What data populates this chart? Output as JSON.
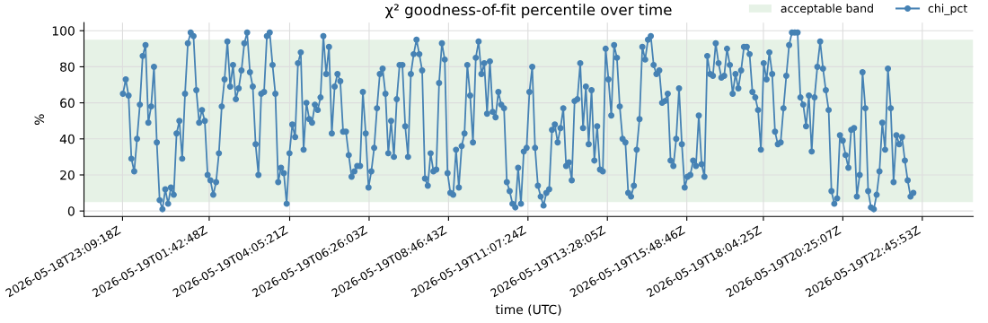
{
  "chart_data": {
    "type": "line",
    "title": "χ² goodness-of-fit percentile over time",
    "xlabel": "time (UTC)",
    "ylabel": "%",
    "xlim": [
      "2026-05-18T22:01",
      "2026-05-20T00:16"
    ],
    "ylim": [
      -3,
      104.5
    ],
    "xticks": [
      {
        "value": "2026-05-18T23:09:18",
        "label": "2026-05-18T23:09:18Z"
      },
      {
        "value": "2026-05-19T01:42:48",
        "label": "2026-05-19T01:42:48Z"
      },
      {
        "value": "2026-05-19T04:05:21",
        "label": "2026-05-19T04:05:21Z"
      },
      {
        "value": "2026-05-19T06:26:03",
        "label": "2026-05-19T06:26:03Z"
      },
      {
        "value": "2026-05-19T08:46:43",
        "label": "2026-05-19T08:46:43Z"
      },
      {
        "value": "2026-05-19T11:07:24",
        "label": "2026-05-19T11:07:24Z"
      },
      {
        "value": "2026-05-19T13:28:05",
        "label": "2026-05-19T13:28:05Z"
      },
      {
        "value": "2026-05-19T15:48:46",
        "label": "2026-05-19T15:48:46Z"
      },
      {
        "value": "2026-05-19T18:04:25",
        "label": "2026-05-19T18:04:25Z"
      },
      {
        "value": "2026-05-19T20:25:07",
        "label": "2026-05-19T20:25:07Z"
      },
      {
        "value": "2026-05-19T22:45:53",
        "label": "2026-05-19T22:45:53Z"
      }
    ],
    "yticks": [
      0,
      20,
      40,
      60,
      80,
      100
    ],
    "grid": true,
    "legend": "top right",
    "marker": "circle",
    "line_style": "solid",
    "bands": [
      {
        "axis": "y",
        "from": 5,
        "to": 95,
        "label": "acceptable band",
        "color": "#e6f2e6"
      }
    ],
    "x": [
      "2026-05-18T23:10",
      "2026-05-18T23:15",
      "2026-05-18T23:20",
      "2026-05-18T23:25",
      "2026-05-18T23:30",
      "2026-05-18T23:35",
      "2026-05-18T23:40",
      "2026-05-18T23:45",
      "2026-05-18T23:50",
      "2026-05-18T23:55",
      "2026-05-19T00:00",
      "2026-05-19T00:05",
      "2026-05-19T00:10",
      "2026-05-19T00:15",
      "2026-05-19T00:20",
      "2026-05-19T00:25",
      "2026-05-19T00:30",
      "2026-05-19T00:35",
      "2026-05-19T00:40",
      "2026-05-19T00:45",
      "2026-05-19T00:50",
      "2026-05-19T00:55",
      "2026-05-19T01:00",
      "2026-05-19T01:05",
      "2026-05-19T01:10",
      "2026-05-19T01:15",
      "2026-05-19T01:20",
      "2026-05-19T01:25",
      "2026-05-19T01:30",
      "2026-05-19T01:35",
      "2026-05-19T01:40",
      "2026-05-19T01:45",
      "2026-05-19T01:50",
      "2026-05-19T01:55",
      "2026-05-19T02:00",
      "2026-05-19T02:05",
      "2026-05-19T02:10",
      "2026-05-19T02:15",
      "2026-05-19T02:20",
      "2026-05-19T02:25",
      "2026-05-19T02:30",
      "2026-05-19T02:35",
      "2026-05-19T02:40",
      "2026-05-19T02:45",
      "2026-05-19T02:50",
      "2026-05-19T02:55",
      "2026-05-19T03:00",
      "2026-05-19T03:05",
      "2026-05-19T03:10",
      "2026-05-19T03:15",
      "2026-05-19T03:20",
      "2026-05-19T03:25",
      "2026-05-19T03:30",
      "2026-05-19T03:35",
      "2026-05-19T03:40",
      "2026-05-19T03:45",
      "2026-05-19T03:50",
      "2026-05-19T03:55",
      "2026-05-19T04:00",
      "2026-05-19T04:05",
      "2026-05-19T04:10",
      "2026-05-19T04:15",
      "2026-05-19T04:20",
      "2026-05-19T04:25",
      "2026-05-19T04:30",
      "2026-05-19T04:35",
      "2026-05-19T04:40",
      "2026-05-19T04:45",
      "2026-05-19T04:50",
      "2026-05-19T04:55",
      "2026-05-19T05:00",
      "2026-05-19T05:05",
      "2026-05-19T05:10",
      "2026-05-19T05:15",
      "2026-05-19T05:20",
      "2026-05-19T05:25",
      "2026-05-19T05:30",
      "2026-05-19T05:35",
      "2026-05-19T05:40",
      "2026-05-19T05:45",
      "2026-05-19T05:50",
      "2026-05-19T05:55",
      "2026-05-19T06:00",
      "2026-05-19T06:05",
      "2026-05-19T06:10",
      "2026-05-19T06:15",
      "2026-05-19T06:20",
      "2026-05-19T06:25",
      "2026-05-19T06:30",
      "2026-05-19T06:35",
      "2026-05-19T06:40",
      "2026-05-19T06:45",
      "2026-05-19T06:50",
      "2026-05-19T06:55",
      "2026-05-19T07:00",
      "2026-05-19T07:05",
      "2026-05-19T07:10",
      "2026-05-19T07:15",
      "2026-05-19T07:20",
      "2026-05-19T07:25",
      "2026-05-19T07:30",
      "2026-05-19T07:35",
      "2026-05-19T07:40",
      "2026-05-19T07:45",
      "2026-05-19T07:50",
      "2026-05-19T07:55",
      "2026-05-19T08:00",
      "2026-05-19T08:05",
      "2026-05-19T08:10",
      "2026-05-19T08:15",
      "2026-05-19T08:20",
      "2026-05-19T08:25",
      "2026-05-19T08:30",
      "2026-05-19T08:35",
      "2026-05-19T08:40",
      "2026-05-19T08:45",
      "2026-05-19T08:50",
      "2026-05-19T08:55",
      "2026-05-19T09:00",
      "2026-05-19T09:05",
      "2026-05-19T09:10",
      "2026-05-19T09:15",
      "2026-05-19T09:20",
      "2026-05-19T09:25",
      "2026-05-19T09:30",
      "2026-05-19T09:35",
      "2026-05-19T09:40",
      "2026-05-19T09:45",
      "2026-05-19T09:50",
      "2026-05-19T09:55",
      "2026-05-19T10:00",
      "2026-05-19T10:05",
      "2026-05-19T10:10",
      "2026-05-19T10:15",
      "2026-05-19T10:20",
      "2026-05-19T10:25",
      "2026-05-19T10:30",
      "2026-05-19T10:35",
      "2026-05-19T10:40",
      "2026-05-19T10:45",
      "2026-05-19T10:50",
      "2026-05-19T10:55",
      "2026-05-19T11:00",
      "2026-05-19T11:05",
      "2026-05-19T11:10",
      "2026-05-19T11:15",
      "2026-05-19T11:20",
      "2026-05-19T11:25",
      "2026-05-19T11:30",
      "2026-05-19T11:35",
      "2026-05-19T11:40",
      "2026-05-19T11:45",
      "2026-05-19T11:50",
      "2026-05-19T11:55",
      "2026-05-19T12:00",
      "2026-05-19T12:05",
      "2026-05-19T12:10",
      "2026-05-19T12:15",
      "2026-05-19T12:20",
      "2026-05-19T12:25",
      "2026-05-19T12:30",
      "2026-05-19T12:35",
      "2026-05-19T12:40",
      "2026-05-19T12:45",
      "2026-05-19T12:50",
      "2026-05-19T12:55",
      "2026-05-19T13:00",
      "2026-05-19T13:05",
      "2026-05-19T13:10",
      "2026-05-19T13:15",
      "2026-05-19T13:20",
      "2026-05-19T13:25",
      "2026-05-19T13:30",
      "2026-05-19T13:35",
      "2026-05-19T13:40",
      "2026-05-19T13:45",
      "2026-05-19T13:50",
      "2026-05-19T13:55",
      "2026-05-19T14:00",
      "2026-05-19T14:05",
      "2026-05-19T14:10",
      "2026-05-19T14:15",
      "2026-05-19T14:20",
      "2026-05-19T14:25",
      "2026-05-19T14:30",
      "2026-05-19T14:35",
      "2026-05-19T14:40",
      "2026-05-19T14:45",
      "2026-05-19T14:50",
      "2026-05-19T14:55",
      "2026-05-19T15:00",
      "2026-05-19T15:05",
      "2026-05-19T15:10",
      "2026-05-19T15:15",
      "2026-05-19T15:20",
      "2026-05-19T15:25",
      "2026-05-19T15:30",
      "2026-05-19T15:35",
      "2026-05-19T15:40",
      "2026-05-19T15:45",
      "2026-05-19T15:50",
      "2026-05-19T15:55",
      "2026-05-19T16:00",
      "2026-05-19T16:05",
      "2026-05-19T16:10",
      "2026-05-19T16:15",
      "2026-05-19T16:20",
      "2026-05-19T16:25",
      "2026-05-19T16:30",
      "2026-05-19T16:35",
      "2026-05-19T16:40",
      "2026-05-19T16:45",
      "2026-05-19T16:50",
      "2026-05-19T16:55",
      "2026-05-19T17:00",
      "2026-05-19T17:05",
      "2026-05-19T17:10",
      "2026-05-19T17:15",
      "2026-05-19T17:20",
      "2026-05-19T17:25",
      "2026-05-19T17:30",
      "2026-05-19T17:35",
      "2026-05-19T17:40",
      "2026-05-19T17:45",
      "2026-05-19T17:50",
      "2026-05-19T17:55",
      "2026-05-19T18:00",
      "2026-05-19T18:05",
      "2026-05-19T18:10",
      "2026-05-19T18:15",
      "2026-05-19T18:20",
      "2026-05-19T18:25",
      "2026-05-19T18:30",
      "2026-05-19T18:35",
      "2026-05-19T18:40",
      "2026-05-19T18:45",
      "2026-05-19T18:50",
      "2026-05-19T18:55",
      "2026-05-19T19:00",
      "2026-05-19T19:05",
      "2026-05-19T19:10",
      "2026-05-19T19:15",
      "2026-05-19T19:20",
      "2026-05-19T19:25",
      "2026-05-19T19:30",
      "2026-05-19T19:35",
      "2026-05-19T19:40",
      "2026-05-19T19:45",
      "2026-05-19T19:50",
      "2026-05-19T19:55",
      "2026-05-19T20:00",
      "2026-05-19T20:05",
      "2026-05-19T20:10",
      "2026-05-19T20:15",
      "2026-05-19T20:20",
      "2026-05-19T20:25",
      "2026-05-19T20:30",
      "2026-05-19T20:35",
      "2026-05-19T20:40",
      "2026-05-19T20:45",
      "2026-05-19T20:50",
      "2026-05-19T20:55",
      "2026-05-19T21:00",
      "2026-05-19T21:05",
      "2026-05-19T21:10",
      "2026-05-19T21:15",
      "2026-05-19T21:20",
      "2026-05-19T21:25",
      "2026-05-19T21:30",
      "2026-05-19T21:35",
      "2026-05-19T21:40",
      "2026-05-19T21:45",
      "2026-05-19T21:50",
      "2026-05-19T21:55",
      "2026-05-19T22:00",
      "2026-05-19T22:05",
      "2026-05-19T22:10",
      "2026-05-19T22:15",
      "2026-05-19T22:20",
      "2026-05-19T22:25",
      "2026-05-19T22:30"
    ],
    "series": [
      {
        "name": "chi_pct",
        "color": "#4682b4",
        "values": [
          65,
          73,
          64,
          29,
          22,
          40,
          59,
          86,
          92,
          49,
          58,
          80,
          38,
          6,
          1,
          12,
          4,
          13,
          9,
          43,
          50,
          29,
          65,
          93,
          99,
          97,
          67,
          49,
          56,
          50,
          20,
          17,
          9,
          16,
          32,
          58,
          73,
          94,
          69,
          81,
          62,
          68,
          78,
          93,
          99,
          77,
          69,
          37,
          20,
          65,
          66,
          97,
          99,
          81,
          65,
          16,
          24,
          21,
          4,
          32,
          48,
          41,
          82,
          88,
          34,
          60,
          51,
          49,
          59,
          56,
          63,
          97,
          76,
          91,
          43,
          69,
          76,
          72,
          44,
          44,
          31,
          19,
          22,
          25,
          25,
          66,
          43,
          13,
          22,
          35,
          57,
          76,
          79,
          65,
          32,
          50,
          30,
          62,
          81,
          81,
          47,
          30,
          76,
          87,
          95,
          87,
          78,
          18,
          14,
          32,
          22,
          23,
          71,
          93,
          84,
          21,
          10,
          9,
          34,
          13,
          36,
          43,
          81,
          64,
          38,
          85,
          94,
          76,
          82,
          54,
          83,
          55,
          52,
          66,
          59,
          57,
          16,
          11,
          4,
          2,
          24,
          4,
          33,
          35,
          66,
          80,
          35,
          14,
          8,
          3,
          10,
          12,
          45,
          48,
          38,
          46,
          57,
          25,
          27,
          17,
          61,
          62,
          82,
          46,
          69,
          37,
          67,
          28,
          47,
          23,
          22,
          90,
          73,
          53,
          92,
          85,
          58,
          40,
          38,
          10,
          8,
          14,
          34,
          51,
          91,
          84,
          95,
          97,
          81,
          76,
          78,
          60,
          61,
          65,
          28,
          25,
          40,
          68,
          37,
          13,
          19,
          20,
          28,
          25,
          53,
          26,
          19,
          86,
          76,
          75,
          93,
          82,
          74,
          75,
          90,
          81,
          65,
          76,
          68,
          78,
          91,
          91,
          87,
          66,
          63,
          56,
          34,
          82,
          73,
          88,
          76,
          44,
          37,
          38,
          57,
          75,
          92,
          99,
          99,
          99,
          63,
          59,
          47,
          64,
          33,
          63,
          80,
          94,
          79,
          67,
          56,
          11,
          4,
          7,
          42,
          39,
          31,
          24,
          45,
          46,
          8,
          20,
          77,
          57,
          11,
          2,
          1,
          9,
          22,
          49,
          34,
          79,
          57,
          16,
          42,
          37,
          41,
          28,
          17,
          8,
          10
        ]
      }
    ]
  }
}
